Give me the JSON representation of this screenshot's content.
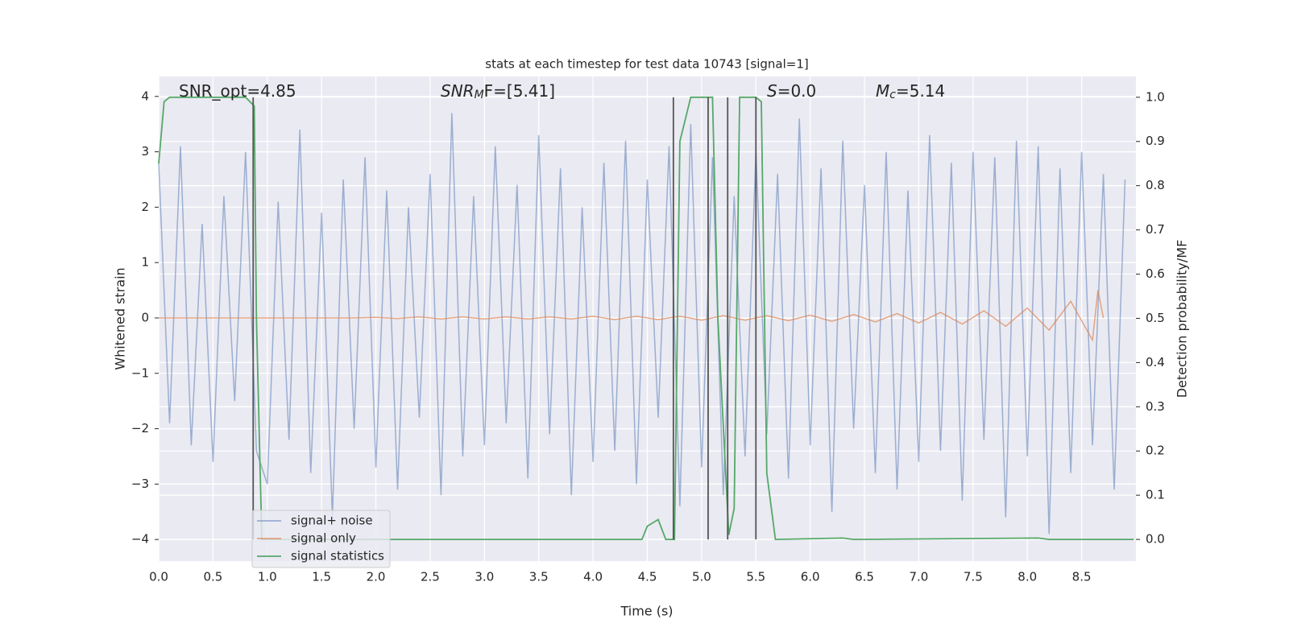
{
  "chart_data": {
    "type": "line",
    "title": "stats at each timestep for test data 10743 [signal=1]",
    "xlabel": "Time (s)",
    "ylabel": "Whitened strain",
    "y2label": "Detection probability/MF",
    "xlim": [
      0,
      9.0
    ],
    "ylim": [
      -4.39,
      4.36
    ],
    "y2lim": [
      -0.049,
      1.047
    ],
    "xticks": [
      {
        "value": 0,
        "label": "0.0"
      },
      {
        "value": 0.5,
        "label": "0.5"
      },
      {
        "value": 1,
        "label": "1.0"
      },
      {
        "value": 1.5,
        "label": "1.5"
      },
      {
        "value": 2,
        "label": "2.0"
      },
      {
        "value": 2.5,
        "label": "2.5"
      },
      {
        "value": 3,
        "label": "3.0"
      },
      {
        "value": 3.5,
        "label": "3.5"
      },
      {
        "value": 4,
        "label": "4.0"
      },
      {
        "value": 4.5,
        "label": "4.5"
      },
      {
        "value": 5,
        "label": "5.0"
      },
      {
        "value": 5.5,
        "label": "5.5"
      },
      {
        "value": 6,
        "label": "6.0"
      },
      {
        "value": 6.5,
        "label": "6.5"
      },
      {
        "value": 7,
        "label": "7.0"
      },
      {
        "value": 7.5,
        "label": "7.5"
      },
      {
        "value": 8,
        "label": "8.0"
      },
      {
        "value": 8.5,
        "label": "8.5"
      }
    ],
    "yticks": [
      {
        "value": -4,
        "label": "−4"
      },
      {
        "value": -3,
        "label": "−3"
      },
      {
        "value": -2,
        "label": "−2"
      },
      {
        "value": -1,
        "label": "−1"
      },
      0,
      1,
      2,
      3,
      4
    ],
    "y2ticks": [
      {
        "value": 0,
        "label": "0.0"
      },
      {
        "value": 0.1,
        "label": "0.1"
      },
      {
        "value": 0.2,
        "label": "0.2"
      },
      {
        "value": 0.3,
        "label": "0.3"
      },
      {
        "value": 0.4,
        "label": "0.4"
      },
      {
        "value": 0.5,
        "label": "0.5"
      },
      {
        "value": 0.6,
        "label": "0.6"
      },
      {
        "value": 0.7,
        "label": "0.7"
      },
      {
        "value": 0.8,
        "label": "0.8"
      },
      {
        "value": 0.9,
        "label": "0.9"
      },
      {
        "value": 1,
        "label": "1.0"
      }
    ],
    "grid": true,
    "legend": "lower left",
    "annotations": [
      {
        "base": "SNR_opt=4.85"
      },
      {
        "base": "SNR",
        "sub": "M",
        "tail": "F=[5.41]"
      },
      {
        "base": "S",
        "tail": "=0.0"
      },
      {
        "base": "M",
        "sub": "c",
        "tail": "=5.14"
      }
    ],
    "vlines": [
      0.87,
      4.74,
      5.06,
      5.24,
      5.5
    ],
    "vline_color": "#555555",
    "series": [
      {
        "name": "signal+ noise",
        "color": "#4c72b0",
        "x": [
          0,
          0.1,
          0.2,
          0.3,
          0.4,
          0.5,
          0.6,
          0.7,
          0.8,
          0.9,
          1,
          1.1,
          1.2,
          1.3,
          1.4,
          1.5,
          1.6,
          1.7,
          1.8,
          1.9,
          2,
          2.1,
          2.2,
          2.3,
          2.4,
          2.5,
          2.6,
          2.7,
          2.8,
          2.9,
          3,
          3.1,
          3.2,
          3.3,
          3.4,
          3.5,
          3.6,
          3.7,
          3.8,
          3.9,
          4,
          4.1,
          4.2,
          4.3,
          4.4,
          4.5,
          4.6,
          4.7,
          4.8,
          4.9,
          5,
          5.1,
          5.2,
          5.3,
          5.4,
          5.5,
          5.6,
          5.7,
          5.8,
          5.9,
          6,
          6.1,
          6.2,
          6.3,
          6.4,
          6.5,
          6.6,
          6.7,
          6.8,
          6.9,
          7,
          7.1,
          7.2,
          7.3,
          7.4,
          7.5,
          7.6,
          7.7,
          7.8,
          7.9,
          8,
          8.1,
          8.2,
          8.3,
          8.4,
          8.5,
          8.6,
          8.7,
          8.8,
          8.9
        ],
        "values": [
          2.8,
          -1.9,
          3.1,
          -2.3,
          1.7,
          -2.6,
          2.2,
          -1.5,
          3.0,
          -2.4,
          -3.0,
          2.1,
          -2.2,
          3.4,
          -2.8,
          1.9,
          -3.6,
          2.5,
          -2.0,
          2.9,
          -2.7,
          2.3,
          -3.1,
          2.0,
          -1.8,
          2.6,
          -3.2,
          3.7,
          -2.5,
          2.2,
          -2.3,
          3.1,
          -1.9,
          2.4,
          -2.9,
          3.3,
          -2.1,
          2.7,
          -3.2,
          2.0,
          -2.6,
          2.8,
          -2.4,
          3.2,
          -3.0,
          2.5,
          -1.8,
          3.1,
          -3.4,
          3.5,
          -2.7,
          2.9,
          -3.2,
          2.2,
          -2.5,
          3.0,
          -2.1,
          2.6,
          -2.9,
          3.6,
          -2.3,
          2.7,
          -3.5,
          3.2,
          -2.0,
          2.4,
          -2.8,
          3.0,
          -3.1,
          2.3,
          -2.6,
          3.3,
          -2.4,
          2.8,
          -3.3,
          3.0,
          -2.2,
          2.9,
          -3.6,
          3.2,
          -2.5,
          3.1,
          -3.9,
          2.7,
          -2.8,
          3.0,
          -2.3,
          2.6,
          -3.1,
          2.5
        ]
      },
      {
        "name": "signal only",
        "color": "#dd8452",
        "x": [
          0,
          0.2,
          0.4,
          0.6,
          0.8,
          1,
          1.2,
          1.4,
          1.6,
          1.8,
          2,
          2.2,
          2.4,
          2.6,
          2.8,
          3,
          3.2,
          3.4,
          3.6,
          3.8,
          4,
          4.2,
          4.4,
          4.6,
          4.8,
          5,
          5.2,
          5.4,
          5.6,
          5.8,
          6,
          6.2,
          6.4,
          6.6,
          6.8,
          7,
          7.2,
          7.4,
          7.6,
          7.8,
          8,
          8.2,
          8.4,
          8.6,
          8.65,
          8.7
        ],
        "values": [
          0,
          0,
          0,
          0,
          0,
          0,
          0,
          0,
          0,
          0,
          0.01,
          -0.01,
          0.02,
          -0.02,
          0.02,
          -0.02,
          0.02,
          -0.02,
          0.02,
          -0.02,
          0.03,
          -0.03,
          0.03,
          -0.03,
          0.03,
          -0.04,
          0.04,
          -0.04,
          0.04,
          -0.05,
          0.05,
          -0.06,
          0.06,
          -0.07,
          0.08,
          -0.09,
          0.1,
          -0.11,
          0.13,
          -0.15,
          0.18,
          -0.22,
          0.3,
          -0.4,
          0.5,
          0
        ]
      },
      {
        "name": "signal statistics",
        "color": "#55a868",
        "axis": "y2",
        "x": [
          0,
          0.05,
          0.1,
          0.8,
          0.88,
          0.9,
          0.95,
          4.45,
          4.5,
          4.6,
          4.67,
          4.75,
          4.8,
          4.9,
          5.1,
          5.15,
          5.25,
          5.3,
          5.35,
          5.5,
          5.55,
          5.6,
          5.68,
          6.3,
          6.4,
          8.1,
          8.2,
          8.98
        ],
        "values": [
          0.85,
          0.99,
          1.0,
          1.0,
          0.98,
          0.5,
          0.0,
          0.0,
          0.03,
          0.045,
          0.0,
          0.0,
          0.9,
          1.0,
          1.0,
          0.5,
          0.01,
          0.07,
          1.0,
          1.0,
          0.99,
          0.15,
          0.0,
          0.003,
          0.0,
          0.003,
          0.0,
          0.0
        ]
      }
    ]
  }
}
